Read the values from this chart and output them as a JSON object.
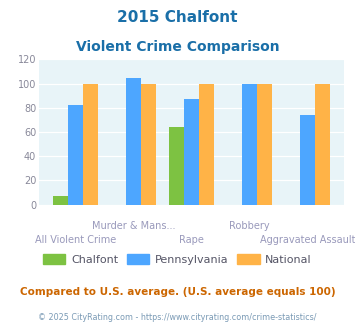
{
  "title_line1": "2015 Chalfont",
  "title_line2": "Violent Crime Comparison",
  "categories": [
    "All Violent Crime",
    "Murder & Mans...",
    "Rape",
    "Robbery",
    "Aggravated Assault"
  ],
  "chalfont": [
    7,
    0,
    64,
    0,
    0
  ],
  "pennsylvania": [
    82,
    105,
    87,
    100,
    74
  ],
  "national": [
    100,
    100,
    100,
    100,
    100
  ],
  "chalfont_color": "#7dc242",
  "pennsylvania_color": "#4da6ff",
  "national_color": "#ffb347",
  "bg_color": "#e8f4f8",
  "ylim": [
    0,
    120
  ],
  "yticks": [
    0,
    20,
    40,
    60,
    80,
    100,
    120
  ],
  "xlabel_top": [
    "",
    "Murder & Mans...",
    "",
    "Robbery",
    ""
  ],
  "xlabel_bottom": [
    "All Violent Crime",
    "",
    "Rape",
    "",
    "Aggravated Assault"
  ],
  "footnote1": "Compared to U.S. average. (U.S. average equals 100)",
  "footnote2": "© 2025 CityRating.com - https://www.cityrating.com/crime-statistics/",
  "title_color": "#1a6fa8",
  "footnote1_color": "#cc6600",
  "footnote2_color": "#7a9ab5",
  "label_color": "#9999bb"
}
